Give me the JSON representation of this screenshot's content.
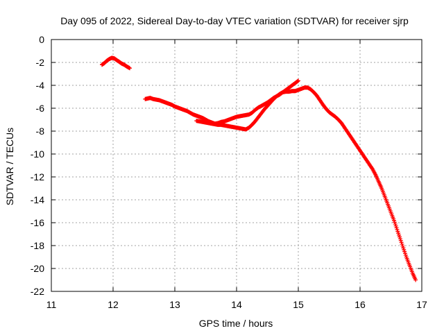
{
  "chart_data": {
    "type": "scatter",
    "title": "Day 095 of 2022, Sidereal Day-to-day VTEC variation (SDTVAR) for receiver sjrp",
    "xlabel": "GPS time / hours",
    "ylabel": "SDTVAR / TECUs",
    "xlim": [
      11,
      17
    ],
    "ylim": [
      -22,
      0
    ],
    "x_ticks": [
      11,
      12,
      13,
      14,
      15,
      16,
      17
    ],
    "y_ticks": [
      0,
      -2,
      -4,
      -6,
      -8,
      -10,
      -12,
      -14,
      -16,
      -18,
      -20,
      -22
    ],
    "grid": true,
    "marker": "+",
    "series": [
      {
        "name": "SDTVAR",
        "color": "#ff0000",
        "segments": [
          {
            "x": [
              11.82,
              11.86,
              11.9,
              11.94,
              11.98,
              12.02,
              12.06,
              12.1,
              12.14,
              12.18,
              12.22,
              12.27
            ],
            "y": [
              -2.2,
              -2.05,
              -1.85,
              -1.7,
              -1.6,
              -1.65,
              -1.8,
              -1.95,
              -2.1,
              -2.2,
              -2.35,
              -2.5
            ]
          },
          {
            "x": [
              12.52,
              12.56,
              12.6,
              12.65,
              12.7,
              12.75,
              12.8,
              12.85,
              12.9,
              12.95,
              13.0,
              13.05,
              13.1,
              13.15,
              13.2,
              13.25,
              13.3,
              13.35,
              13.4,
              13.45,
              13.5,
              13.55,
              13.6,
              13.65,
              13.7,
              13.75,
              13.8,
              13.85,
              13.9,
              13.95,
              14.0,
              14.05,
              14.1,
              14.15,
              14.2,
              14.25,
              14.3,
              14.35,
              14.4,
              14.45,
              14.5,
              14.55,
              14.6,
              14.65,
              14.7,
              14.75,
              14.8,
              14.85,
              14.9,
              14.95,
              15.0
            ],
            "y": [
              -5.2,
              -5.15,
              -5.1,
              -5.2,
              -5.25,
              -5.3,
              -5.4,
              -5.5,
              -5.6,
              -5.7,
              -5.85,
              -5.95,
              -6.05,
              -6.15,
              -6.25,
              -6.4,
              -6.55,
              -6.65,
              -6.75,
              -6.85,
              -7.0,
              -7.15,
              -7.25,
              -7.35,
              -7.3,
              -7.2,
              -7.15,
              -7.05,
              -6.95,
              -6.85,
              -6.75,
              -6.7,
              -6.65,
              -6.6,
              -6.55,
              -6.4,
              -6.15,
              -5.95,
              -5.8,
              -5.65,
              -5.5,
              -5.3,
              -5.1,
              -4.95,
              -4.8,
              -4.6,
              -4.4,
              -4.2,
              -4.0,
              -3.8,
              -3.6
            ]
          },
          {
            "x": [
              13.35,
              13.4,
              13.45,
              13.5,
              13.55,
              13.6,
              13.65,
              13.7,
              13.75,
              13.8,
              13.85,
              13.9,
              13.95,
              14.0,
              14.05,
              14.1,
              14.15,
              14.2,
              14.25,
              14.3,
              14.35,
              14.4,
              14.45,
              14.5,
              14.55,
              14.6,
              14.65,
              14.7,
              14.75,
              14.8,
              14.85,
              14.9,
              14.95,
              15.0,
              15.05,
              15.1,
              15.15,
              15.2,
              15.25,
              15.3,
              15.35,
              15.4,
              15.45,
              15.5,
              15.55,
              15.6,
              15.65,
              15.7,
              15.75,
              15.8,
              15.85,
              15.9,
              15.95,
              16.0,
              16.05,
              16.1,
              16.15,
              16.2,
              16.25,
              16.3,
              16.35,
              16.4,
              16.45,
              16.5,
              16.55,
              16.6,
              16.65,
              16.7,
              16.75,
              16.8,
              16.85,
              16.9
            ],
            "y": [
              -7.1,
              -7.15,
              -7.2,
              -7.25,
              -7.3,
              -7.35,
              -7.4,
              -7.45,
              -7.45,
              -7.5,
              -7.55,
              -7.6,
              -7.65,
              -7.7,
              -7.75,
              -7.8,
              -7.85,
              -7.7,
              -7.45,
              -7.15,
              -6.8,
              -6.45,
              -6.1,
              -5.8,
              -5.5,
              -5.2,
              -4.95,
              -4.75,
              -4.6,
              -4.55,
              -4.55,
              -4.5,
              -4.5,
              -4.4,
              -4.3,
              -4.2,
              -4.2,
              -4.35,
              -4.6,
              -4.9,
              -5.3,
              -5.7,
              -6.05,
              -6.35,
              -6.55,
              -6.75,
              -7.0,
              -7.3,
              -7.7,
              -8.1,
              -8.5,
              -8.9,
              -9.3,
              -9.7,
              -10.1,
              -10.5,
              -10.9,
              -11.3,
              -11.8,
              -12.4,
              -13.0,
              -13.7,
              -14.4,
              -15.1,
              -15.8,
              -16.6,
              -17.4,
              -18.2,
              -19.0,
              -19.7,
              -20.4,
              -21.0
            ]
          }
        ]
      }
    ]
  }
}
